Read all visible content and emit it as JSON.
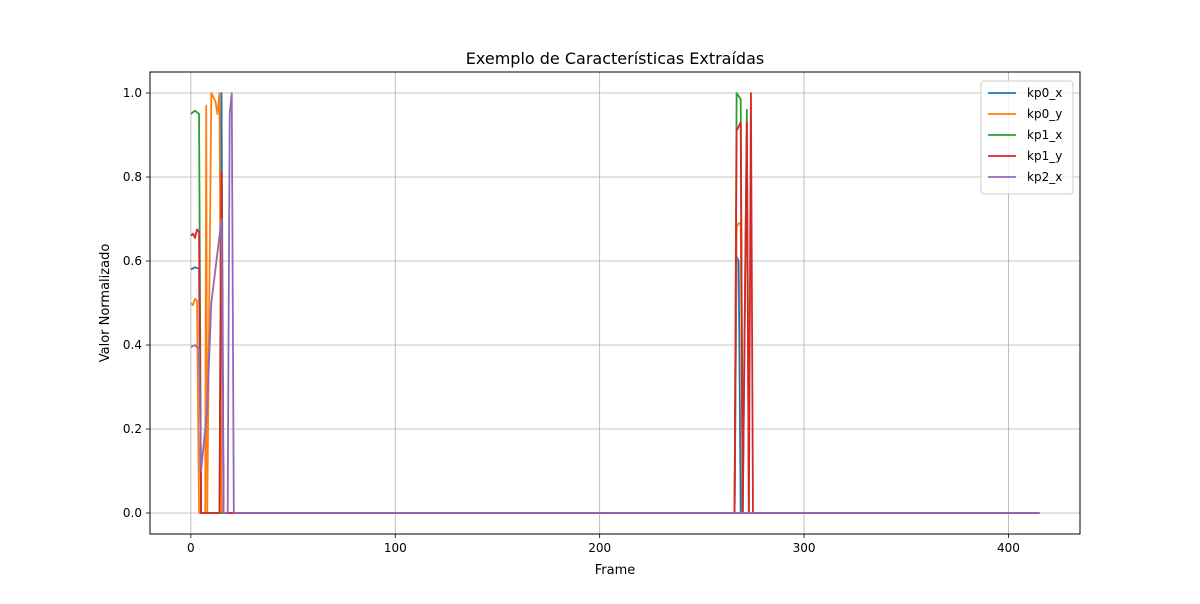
{
  "chart_data": {
    "type": "line",
    "title": "Exemplo de Características Extraídas",
    "xlabel": "Frame",
    "ylabel": "Valor Normalizado",
    "xlim": [
      -20,
      435
    ],
    "ylim": [
      -0.05,
      1.05
    ],
    "xticks": [
      0,
      100,
      200,
      300,
      400
    ],
    "yticks": [
      0.0,
      0.2,
      0.4,
      0.6,
      0.8,
      1.0
    ],
    "xtick_labels": [
      "0",
      "100",
      "200",
      "300",
      "400"
    ],
    "ytick_labels": [
      "0.0",
      "0.2",
      "0.4",
      "0.6",
      "0.8",
      "1.0"
    ],
    "grid": true,
    "legend_position": "top-right",
    "series": [
      {
        "name": "kp0_x",
        "color": "#1f77b4",
        "points": [
          [
            0,
            0.58
          ],
          [
            2,
            0.585
          ],
          [
            4,
            0.582
          ],
          [
            5,
            0
          ],
          [
            14,
            0
          ],
          [
            15,
            1.0
          ],
          [
            16,
            0
          ],
          [
            415,
            0
          ],
          [
            266,
            0
          ],
          [
            267,
            0.61
          ],
          [
            268,
            0.6
          ],
          [
            269,
            0
          ],
          [
            415,
            0
          ]
        ]
      },
      {
        "name": "kp0_y",
        "color": "#ff7f0e",
        "points": [
          [
            0,
            0.5
          ],
          [
            1,
            0.495
          ],
          [
            2,
            0.51
          ],
          [
            3,
            0.505
          ],
          [
            4,
            0
          ],
          [
            7,
            0
          ],
          [
            7.5,
            0.97
          ],
          [
            8,
            0
          ],
          [
            9,
            0.5
          ],
          [
            10,
            1.0
          ],
          [
            11,
            0.99
          ],
          [
            12,
            0.98
          ],
          [
            13,
            0.95
          ],
          [
            14,
            1.0
          ],
          [
            15,
            0
          ],
          [
            266,
            0
          ],
          [
            267,
            0.68
          ],
          [
            268,
            0.69
          ],
          [
            269,
            0.69
          ],
          [
            270,
            0
          ],
          [
            415,
            0
          ]
        ]
      },
      {
        "name": "kp1_x",
        "color": "#2ca02c",
        "points": [
          [
            0,
            0.95
          ],
          [
            2,
            0.958
          ],
          [
            4,
            0.95
          ],
          [
            5,
            0
          ],
          [
            16,
            0
          ],
          [
            266,
            0
          ],
          [
            267,
            1.0
          ],
          [
            269,
            0.985
          ],
          [
            270,
            0
          ],
          [
            272,
            0.96
          ],
          [
            273,
            0
          ],
          [
            415,
            0
          ]
        ]
      },
      {
        "name": "kp1_y",
        "color": "#d62728",
        "points": [
          [
            0,
            0.66
          ],
          [
            1,
            0.665
          ],
          [
            2,
            0.655
          ],
          [
            3,
            0.675
          ],
          [
            4,
            0.67
          ],
          [
            5,
            0
          ],
          [
            14,
            0
          ],
          [
            15,
            0.81
          ],
          [
            16,
            0
          ],
          [
            266,
            0
          ],
          [
            267,
            0.91
          ],
          [
            269,
            0.93
          ],
          [
            270,
            0
          ],
          [
            272,
            0.93
          ],
          [
            273,
            0
          ],
          [
            274,
            1.0
          ],
          [
            275,
            0
          ],
          [
            415,
            0
          ]
        ]
      },
      {
        "name": "kp2_x",
        "color": "#9467bd",
        "points": [
          [
            0,
            0.395
          ],
          [
            2,
            0.4
          ],
          [
            4,
            0.39
          ],
          [
            5,
            0.1
          ],
          [
            8,
            0.25
          ],
          [
            10,
            0.5
          ],
          [
            15,
            0.7
          ],
          [
            16,
            0
          ],
          [
            18,
            0
          ],
          [
            19,
            0.95
          ],
          [
            20,
            1.0
          ],
          [
            21,
            0
          ],
          [
            415,
            0
          ]
        ]
      }
    ]
  }
}
